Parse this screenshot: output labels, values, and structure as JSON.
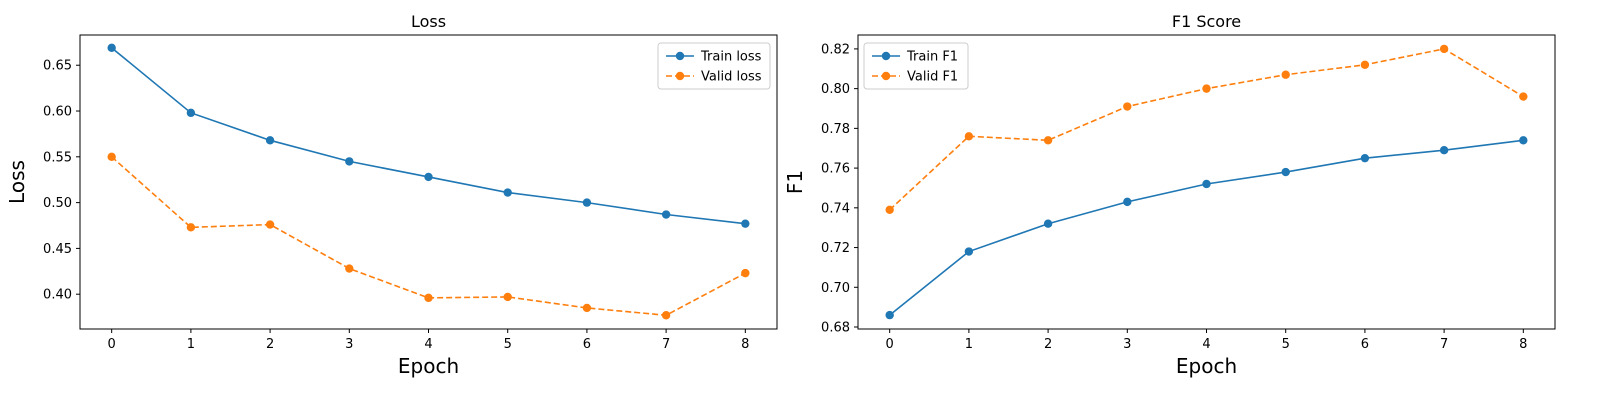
{
  "chart_data": [
    {
      "type": "line",
      "title": "Loss",
      "xlabel": "Epoch",
      "ylabel": "Loss",
      "x": [
        0,
        1,
        2,
        3,
        4,
        5,
        6,
        7,
        8
      ],
      "xlim": [
        -0.4,
        8.4
      ],
      "ylim": [
        0.362,
        0.683
      ],
      "xticks": [
        0,
        1,
        2,
        3,
        4,
        5,
        6,
        7,
        8
      ],
      "yticks": [
        0.4,
        0.45,
        0.5,
        0.55,
        0.6,
        0.65
      ],
      "ytick_labels": [
        "0.40",
        "0.45",
        "0.50",
        "0.55",
        "0.60",
        "0.65"
      ],
      "legend_position": "top-right",
      "grid": false,
      "series": [
        {
          "name": "Train loss",
          "style": "solid",
          "color": "#1f77b4",
          "values": [
            0.669,
            0.598,
            0.568,
            0.545,
            0.528,
            0.511,
            0.5,
            0.487,
            0.477
          ]
        },
        {
          "name": "Valid loss",
          "style": "dashed",
          "color": "#ff7f0e",
          "values": [
            0.55,
            0.473,
            0.476,
            0.428,
            0.396,
            0.397,
            0.385,
            0.377,
            0.423
          ]
        }
      ]
    },
    {
      "type": "line",
      "title": "F1 Score",
      "xlabel": "Epoch",
      "ylabel": "F1",
      "x": [
        0,
        1,
        2,
        3,
        4,
        5,
        6,
        7,
        8
      ],
      "xlim": [
        -0.4,
        8.4
      ],
      "ylim": [
        0.679,
        0.827
      ],
      "xticks": [
        0,
        1,
        2,
        3,
        4,
        5,
        6,
        7,
        8
      ],
      "yticks": [
        0.68,
        0.7,
        0.72,
        0.74,
        0.76,
        0.78,
        0.8,
        0.82
      ],
      "ytick_labels": [
        "0.68",
        "0.70",
        "0.72",
        "0.74",
        "0.76",
        "0.78",
        "0.80",
        "0.82"
      ],
      "legend_position": "top-left",
      "grid": false,
      "series": [
        {
          "name": "Train F1",
          "style": "solid",
          "color": "#1f77b4",
          "values": [
            0.686,
            0.718,
            0.732,
            0.743,
            0.752,
            0.758,
            0.765,
            0.769,
            0.774
          ]
        },
        {
          "name": "Valid F1",
          "style": "dashed",
          "color": "#ff7f0e",
          "values": [
            0.739,
            0.776,
            0.774,
            0.791,
            0.8,
            0.807,
            0.812,
            0.82,
            0.796
          ]
        }
      ]
    }
  ]
}
